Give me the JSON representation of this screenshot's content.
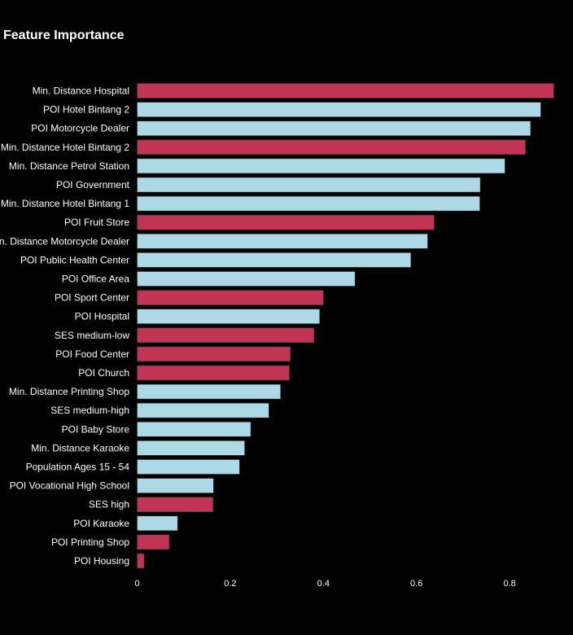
{
  "colors": {
    "background": "#000000",
    "text": "#ffffff",
    "highlight": "#c13454",
    "normal": "#add8e6",
    "bar_edge": "#333333"
  },
  "chart_data": {
    "type": "bar",
    "orientation": "horizontal",
    "title": "Feature Importance",
    "xlabel": "",
    "ylabel": "",
    "xlim": [
      0,
      0.9
    ],
    "xticks": [
      0,
      0.2,
      0.4,
      0.6,
      0.8
    ],
    "xtick_labels": [
      "0",
      "0.2",
      "0.4",
      "0.6",
      "0.8"
    ],
    "grid": false,
    "legend": false,
    "categories": [
      "Min. Distance Hospital",
      "POI Hotel Bintang 2",
      "POI Motorcycle Dealer",
      "Min. Distance Hotel Bintang 2",
      "Min. Distance Petrol Station",
      "POI Government",
      "Min. Distance Hotel Bintang 1",
      "POI Fruit Store",
      "Min. Distance Motorcycle Dealer",
      "POI Public Health Center",
      "POI Office Area",
      "POI Sport Center",
      "POI Hospital",
      "SES medium-low",
      "POI Food Center",
      "POI Church",
      "Min. Distance Printing Shop",
      "SES medium-high",
      "POI Baby Store",
      "Min. Distance Karaoke",
      "Population Ages 15 - 54",
      "POI Vocational High School",
      "SES high",
      "POI Karaoke",
      "POI Printing Shop",
      "POI Housing"
    ],
    "values": [
      0.895,
      0.867,
      0.845,
      0.834,
      0.79,
      0.737,
      0.736,
      0.638,
      0.624,
      0.588,
      0.468,
      0.4,
      0.392,
      0.38,
      0.329,
      0.327,
      0.308,
      0.283,
      0.244,
      0.231,
      0.22,
      0.164,
      0.163,
      0.087,
      0.069,
      0.015
    ],
    "highlighted": [
      true,
      false,
      false,
      true,
      false,
      false,
      false,
      true,
      false,
      false,
      false,
      true,
      false,
      true,
      true,
      true,
      false,
      false,
      false,
      false,
      false,
      false,
      true,
      false,
      true,
      true
    ]
  }
}
